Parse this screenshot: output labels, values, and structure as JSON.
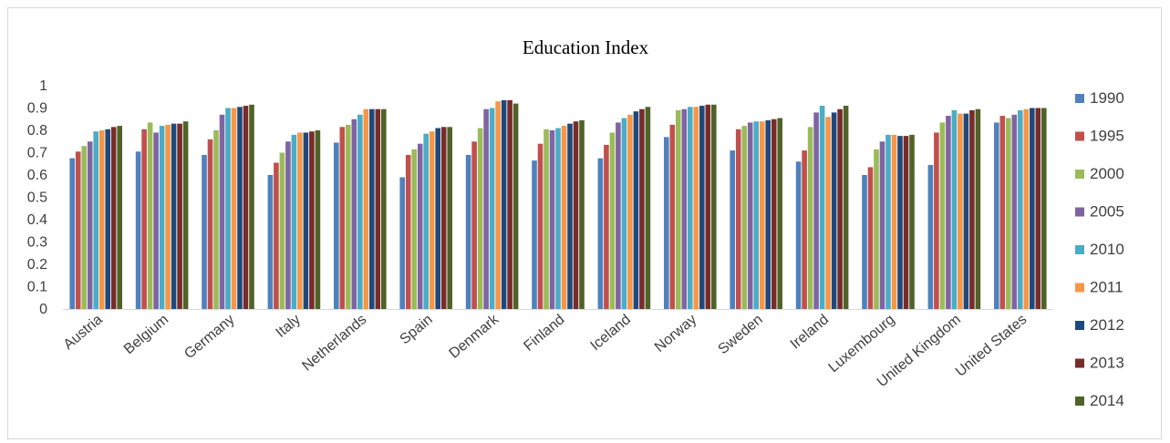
{
  "chart_data": {
    "type": "bar",
    "title": "Education Index",
    "xlabel": "",
    "ylabel": "",
    "ylim": [
      0,
      1
    ],
    "yticks": [
      "0",
      "0.1",
      "0.2",
      "0.3",
      "0.4",
      "0.5",
      "0.6",
      "0.7",
      "0.8",
      "0.9",
      "1"
    ],
    "grid": false,
    "legend_position": "right",
    "categories": [
      "Austria",
      "Belgium",
      "Germany",
      "Italy",
      "Netherlands",
      "Spain",
      "Denmark",
      "Finland",
      "Iceland",
      "Norway",
      "Sweden",
      "Ireland",
      "Luxembourg",
      "United Kingdom",
      "United States"
    ],
    "series": [
      {
        "name": "1990",
        "color": "#4f81bd",
        "values": [
          0.675,
          0.705,
          0.69,
          0.6,
          0.745,
          0.59,
          0.69,
          0.665,
          0.675,
          0.77,
          0.71,
          0.66,
          0.6,
          0.645,
          0.835
        ]
      },
      {
        "name": "1995",
        "color": "#c0504d",
        "values": [
          0.705,
          0.805,
          0.76,
          0.655,
          0.815,
          0.69,
          0.75,
          0.74,
          0.735,
          0.825,
          0.805,
          0.71,
          0.635,
          0.79,
          0.865
        ]
      },
      {
        "name": "2000",
        "color": "#9bbb59",
        "values": [
          0.73,
          0.835,
          0.8,
          0.7,
          0.825,
          0.715,
          0.81,
          0.805,
          0.79,
          0.89,
          0.82,
          0.815,
          0.715,
          0.835,
          0.855
        ]
      },
      {
        "name": "2005",
        "color": "#8064a2",
        "values": [
          0.75,
          0.79,
          0.87,
          0.75,
          0.85,
          0.74,
          0.895,
          0.8,
          0.835,
          0.895,
          0.835,
          0.88,
          0.75,
          0.865,
          0.87
        ]
      },
      {
        "name": "2010",
        "color": "#4bacc6",
        "values": [
          0.795,
          0.82,
          0.9,
          0.78,
          0.87,
          0.785,
          0.9,
          0.81,
          0.855,
          0.905,
          0.84,
          0.91,
          0.78,
          0.89,
          0.89
        ]
      },
      {
        "name": "2011",
        "color": "#f79646",
        "values": [
          0.8,
          0.825,
          0.9,
          0.79,
          0.895,
          0.795,
          0.93,
          0.82,
          0.87,
          0.905,
          0.84,
          0.86,
          0.78,
          0.875,
          0.895
        ]
      },
      {
        "name": "2012",
        "color": "#1f497d",
        "values": [
          0.805,
          0.83,
          0.905,
          0.79,
          0.895,
          0.81,
          0.935,
          0.83,
          0.885,
          0.91,
          0.845,
          0.88,
          0.775,
          0.875,
          0.9
        ]
      },
      {
        "name": "2013",
        "color": "#772c2a",
        "values": [
          0.815,
          0.83,
          0.91,
          0.795,
          0.895,
          0.815,
          0.935,
          0.84,
          0.895,
          0.915,
          0.85,
          0.895,
          0.775,
          0.89,
          0.9
        ]
      },
      {
        "name": "2014",
        "color": "#4f6228",
        "values": [
          0.82,
          0.84,
          0.915,
          0.8,
          0.895,
          0.815,
          0.92,
          0.845,
          0.905,
          0.915,
          0.855,
          0.91,
          0.78,
          0.895,
          0.9
        ]
      }
    ]
  }
}
